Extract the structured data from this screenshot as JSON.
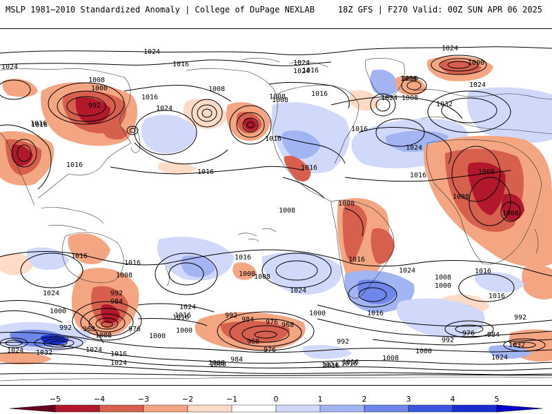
{
  "header": {
    "title_left": "MSLP 1981–2010 Standardized Anomaly | College of DuPage NEXLAB",
    "title_right": "18Z GFS | F270 Valid: 00Z SUN APR 06 2025"
  },
  "colorbar": {
    "ticks": [
      "−5",
      "−4",
      "−3",
      "−2",
      "−1",
      "0",
      "1",
      "2",
      "3",
      "4",
      "5"
    ],
    "colors": [
      "#b2182b",
      "#d6604d",
      "#f4a582",
      "#fddbc7",
      "#ffffff",
      "#d1d9fb",
      "#a3b4f3",
      "#6f86ea",
      "#3b57df",
      "#1a2fd0"
    ]
  },
  "map": {
    "contour_labels": [
      {
        "text": "1024"
      },
      {
        "text": "1016"
      },
      {
        "text": "1024"
      },
      {
        "text": "1024"
      },
      {
        "text": "1000"
      },
      {
        "text": "1016"
      },
      {
        "text": "1008"
      },
      {
        "text": "1000"
      },
      {
        "text": "992"
      },
      {
        "text": "1016"
      },
      {
        "text": "1024"
      },
      {
        "text": "1008"
      },
      {
        "text": "1008"
      },
      {
        "text": "1024"
      },
      {
        "text": "1016"
      },
      {
        "text": "1008"
      },
      {
        "text": "1016"
      },
      {
        "text": "1016"
      },
      {
        "text": "1024"
      },
      {
        "text": "1032"
      },
      {
        "text": "1024"
      },
      {
        "text": "1016"
      },
      {
        "text": "1016"
      },
      {
        "text": "1024"
      },
      {
        "text": "1016"
      },
      {
        "text": "1016"
      },
      {
        "text": "1016"
      },
      {
        "text": "1008"
      },
      {
        "text": "1016"
      },
      {
        "text": "1008"
      },
      {
        "text": "1016"
      },
      {
        "text": "1016"
      },
      {
        "text": "1008"
      },
      {
        "text": "1008"
      },
      {
        "text": "1008"
      },
      {
        "text": "1008"
      },
      {
        "text": "1016"
      },
      {
        "text": "1016"
      },
      {
        "text": "1016"
      },
      {
        "text": "1008"
      },
      {
        "text": "1024"
      },
      {
        "text": "1024"
      },
      {
        "text": "1016"
      },
      {
        "text": "992"
      },
      {
        "text": "984"
      },
      {
        "text": "1000"
      },
      {
        "text": "1024"
      },
      {
        "text": "1016"
      },
      {
        "text": "1016"
      },
      {
        "text": "1000"
      },
      {
        "text": "1008"
      },
      {
        "text": "1024"
      },
      {
        "text": "1000"
      },
      {
        "text": "992"
      },
      {
        "text": "984"
      },
      {
        "text": "976"
      },
      {
        "text": "968"
      },
      {
        "text": "960"
      },
      {
        "text": "976"
      },
      {
        "text": "992"
      },
      {
        "text": "1008"
      },
      {
        "text": "1000"
      },
      {
        "text": "1016"
      },
      {
        "text": "992"
      },
      {
        "text": "976"
      },
      {
        "text": "984"
      },
      {
        "text": "992"
      },
      {
        "text": "1032"
      },
      {
        "text": "1024"
      },
      {
        "text": "1000"
      },
      {
        "text": "1008"
      },
      {
        "text": "984"
      },
      {
        "text": "1024"
      },
      {
        "text": "1016"
      },
      {
        "text": "1008"
      },
      {
        "text": "968"
      },
      {
        "text": "976"
      },
      {
        "text": "992"
      },
      {
        "text": "1032"
      },
      {
        "text": "1024"
      },
      {
        "text": "1024"
      },
      {
        "text": "1008"
      },
      {
        "text": "1016"
      },
      {
        "text": "1000"
      },
      {
        "text": "1016"
      },
      {
        "text": "1008"
      },
      {
        "text": "1024"
      },
      {
        "text": "1016"
      },
      {
        "text": "1024"
      },
      {
        "text": "1016"
      },
      {
        "text": "1008"
      },
      {
        "text": "1016"
      }
    ]
  }
}
